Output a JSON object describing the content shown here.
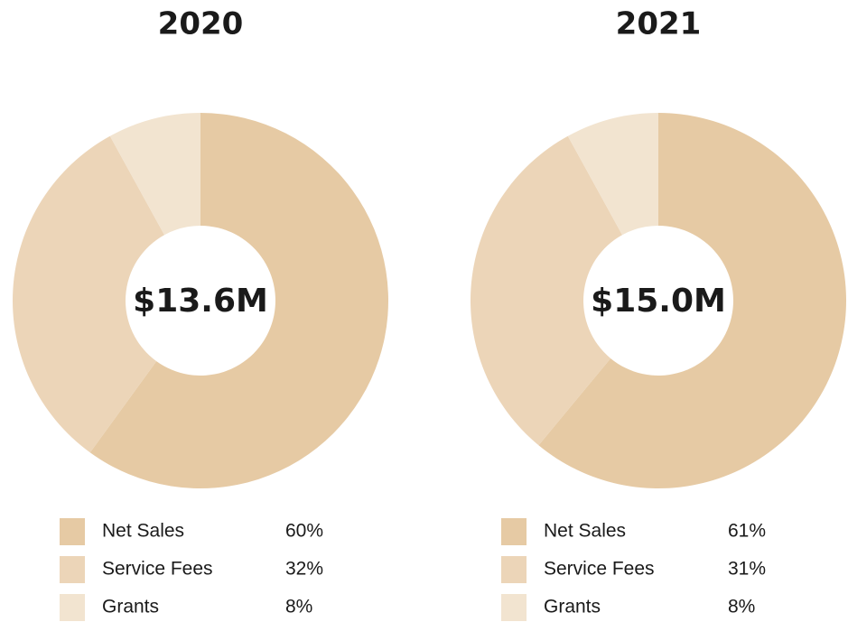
{
  "chart_data": [
    {
      "type": "pie",
      "title": "2020",
      "center_label": "$13.6M",
      "categories": [
        "Net Sales",
        "Service Fees",
        "Grants"
      ],
      "values": [
        60,
        32,
        8
      ],
      "value_labels": [
        "60%",
        "32%",
        "8%"
      ],
      "colors": [
        "#e6caa4",
        "#ecd5b8",
        "#f2e4d0"
      ]
    },
    {
      "type": "pie",
      "title": "2021",
      "center_label": "$15.0M",
      "categories": [
        "Net Sales",
        "Service Fees",
        "Grants"
      ],
      "values": [
        61,
        31,
        8
      ],
      "value_labels": [
        "61%",
        "31%",
        "8%"
      ],
      "colors": [
        "#e6caa4",
        "#ecd5b8",
        "#f2e4d0"
      ]
    }
  ]
}
